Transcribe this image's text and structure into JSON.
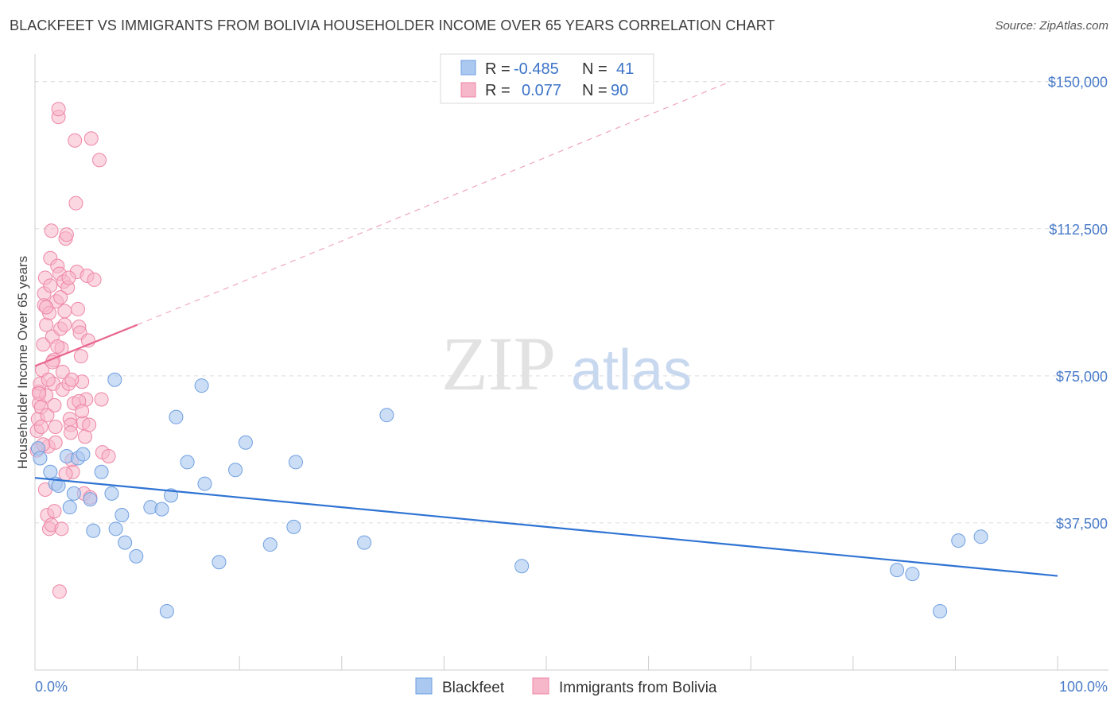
{
  "title": "BLACKFEET VS IMMIGRANTS FROM BOLIVIA HOUSEHOLDER INCOME OVER 65 YEARS CORRELATION CHART",
  "source": "Source: ZipAtlas.com",
  "watermark": {
    "zip": "ZIP",
    "atlas": "atlas"
  },
  "legend": {
    "r_label": "R =",
    "n_label": "N =",
    "rows": [
      {
        "r": "-0.485",
        "n": "41"
      },
      {
        "r": "0.077",
        "n": "90"
      }
    ]
  },
  "colors": {
    "blue_fill": "#aac8f0",
    "blue_stroke": "#6f9fe0",
    "blue_line": "#2f73d3",
    "pink_fill": "#f7b7cb",
    "pink_stroke": "#ee86a6",
    "pink_line": "#e8668d",
    "axis_text": "#4a7cc9"
  },
  "chart_data": {
    "type": "scatter",
    "title": "BLACKFEET VS IMMIGRANTS FROM BOLIVIA HOUSEHOLDER INCOME OVER 65 YEARS CORRELATION CHART",
    "xlabel": "",
    "ylabel": "Householder Income Over 65 years",
    "xlim": [
      0,
      100
    ],
    "ylim": [
      0,
      155000
    ],
    "x_tick_labels": [
      "0.0%",
      "100.0%"
    ],
    "y_ticks": [
      37500,
      75000,
      112500,
      150000
    ],
    "y_tick_labels": [
      "$37,500",
      "$75,000",
      "$112,500",
      "$150,000"
    ],
    "grid": true,
    "series": [
      {
        "name": "Blackfeet",
        "r": -0.485,
        "n": 41,
        "trend": {
          "x0": 0,
          "y0": 49000,
          "x1": 100,
          "y1": 24000
        },
        "points": [
          [
            0.3,
            56500
          ],
          [
            0.5,
            54000
          ],
          [
            1.5,
            50500
          ],
          [
            2.0,
            47500
          ],
          [
            2.3,
            47000
          ],
          [
            3.1,
            54500
          ],
          [
            3.4,
            41500
          ],
          [
            3.8,
            45000
          ],
          [
            4.2,
            54000
          ],
          [
            4.7,
            55000
          ],
          [
            5.4,
            43500
          ],
          [
            5.7,
            35500
          ],
          [
            6.5,
            50500
          ],
          [
            7.5,
            45000
          ],
          [
            7.8,
            74000
          ],
          [
            7.9,
            36000
          ],
          [
            8.5,
            39500
          ],
          [
            8.8,
            32500
          ],
          [
            9.9,
            29000
          ],
          [
            11.3,
            41500
          ],
          [
            12.4,
            41000
          ],
          [
            12.9,
            15000
          ],
          [
            13.3,
            44500
          ],
          [
            13.8,
            64500
          ],
          [
            14.9,
            53000
          ],
          [
            16.3,
            72500
          ],
          [
            16.6,
            47500
          ],
          [
            18.0,
            27500
          ],
          [
            19.6,
            51000
          ],
          [
            20.6,
            58000
          ],
          [
            23.0,
            32000
          ],
          [
            25.3,
            36500
          ],
          [
            25.5,
            53000
          ],
          [
            32.2,
            32500
          ],
          [
            34.4,
            65000
          ],
          [
            47.6,
            26500
          ],
          [
            84.3,
            25500
          ],
          [
            85.8,
            24500
          ],
          [
            88.5,
            15000
          ],
          [
            90.3,
            33000
          ],
          [
            92.5,
            34000
          ]
        ]
      },
      {
        "name": "Immigrants from Bolivia",
        "r": 0.077,
        "n": 90,
        "trend": {
          "x0": 0,
          "y0": 77500,
          "x1": 10,
          "y1": 88000
        },
        "trend_extension": {
          "x0": 10,
          "y0": 88000,
          "x1": 68,
          "y1": 150000
        },
        "points": [
          [
            0.2,
            56000
          ],
          [
            0.2,
            61000
          ],
          [
            0.3,
            64000
          ],
          [
            0.4,
            68000
          ],
          [
            0.4,
            71000
          ],
          [
            0.5,
            73000
          ],
          [
            0.6,
            67000
          ],
          [
            0.7,
            76500
          ],
          [
            0.8,
            83000
          ],
          [
            0.9,
            93000
          ],
          [
            0.9,
            96000
          ],
          [
            1.0,
            100000
          ],
          [
            1.1,
            88000
          ],
          [
            1.1,
            70000
          ],
          [
            1.2,
            65000
          ],
          [
            1.3,
            57000
          ],
          [
            1.4,
            91000
          ],
          [
            1.5,
            98000
          ],
          [
            1.5,
            105000
          ],
          [
            1.6,
            112000
          ],
          [
            1.7,
            85000
          ],
          [
            1.8,
            79000
          ],
          [
            1.8,
            73000
          ],
          [
            1.9,
            67500
          ],
          [
            2.0,
            62000
          ],
          [
            2.0,
            58000
          ],
          [
            2.1,
            94000
          ],
          [
            2.2,
            103000
          ],
          [
            2.3,
            141000
          ],
          [
            2.3,
            143000
          ],
          [
            2.4,
            101000
          ],
          [
            2.5,
            87000
          ],
          [
            2.6,
            82000
          ],
          [
            2.7,
            76000
          ],
          [
            2.7,
            71500
          ],
          [
            2.8,
            99000
          ],
          [
            2.9,
            91500
          ],
          [
            3.0,
            110000
          ],
          [
            3.1,
            111000
          ],
          [
            3.2,
            97500
          ],
          [
            3.3,
            73000
          ],
          [
            3.4,
            64000
          ],
          [
            3.5,
            62500
          ],
          [
            3.6,
            53500
          ],
          [
            3.7,
            50500
          ],
          [
            3.8,
            68000
          ],
          [
            3.9,
            135000
          ],
          [
            4.0,
            119000
          ],
          [
            4.1,
            101500
          ],
          [
            4.2,
            92000
          ],
          [
            4.3,
            87500
          ],
          [
            4.4,
            86000
          ],
          [
            4.5,
            80000
          ],
          [
            4.6,
            73500
          ],
          [
            4.7,
            63000
          ],
          [
            4.8,
            45000
          ],
          [
            4.9,
            59500
          ],
          [
            5.0,
            69000
          ],
          [
            5.1,
            100500
          ],
          [
            5.2,
            84000
          ],
          [
            5.3,
            62500
          ],
          [
            5.4,
            44000
          ],
          [
            5.5,
            135500
          ],
          [
            6.3,
            130000
          ],
          [
            6.5,
            69000
          ],
          [
            5.8,
            99500
          ],
          [
            1.0,
            46000
          ],
          [
            1.2,
            39500
          ],
          [
            1.4,
            36000
          ],
          [
            1.6,
            37000
          ],
          [
            1.9,
            40500
          ],
          [
            2.4,
            20000
          ],
          [
            2.6,
            36000
          ],
          [
            3.0,
            50000
          ],
          [
            3.5,
            60500
          ],
          [
            6.6,
            55500
          ],
          [
            7.2,
            54500
          ],
          [
            1.3,
            74000
          ],
          [
            1.7,
            78500
          ],
          [
            2.2,
            82500
          ],
          [
            2.9,
            88000
          ],
          [
            3.6,
            74000
          ],
          [
            4.3,
            68500
          ],
          [
            0.6,
            62000
          ],
          [
            0.8,
            57500
          ],
          [
            1.1,
            92500
          ],
          [
            2.5,
            95000
          ],
          [
            3.3,
            100000
          ],
          [
            4.6,
            66000
          ],
          [
            0.4,
            70500
          ]
        ]
      }
    ]
  },
  "bottom_legend": [
    "Blackfeet",
    "Immigrants from Bolivia"
  ]
}
